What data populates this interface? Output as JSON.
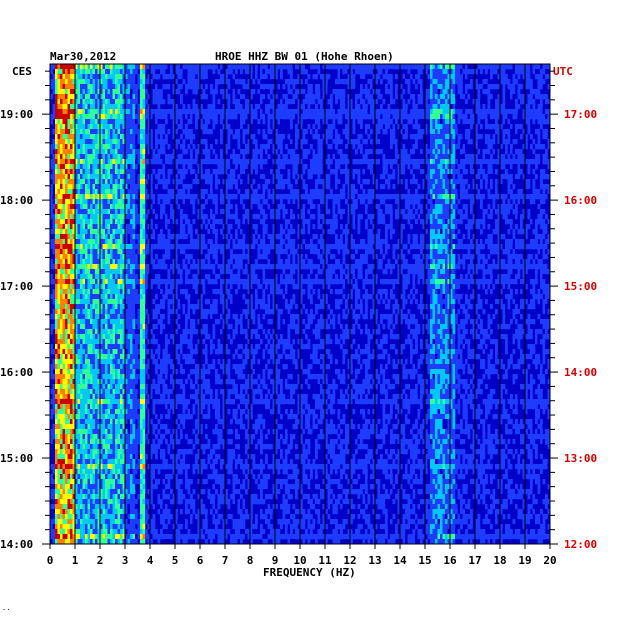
{
  "chart_data": {
    "type": "heatmap",
    "date": "Mar30,2012",
    "title": "HROE HHZ BW 01 (Hohe Rhoen)",
    "left_timezone": "CES",
    "right_timezone": "UTC",
    "xlabel": "FREQUENCY (HZ)",
    "xlim": [
      0,
      20
    ],
    "x_ticks": [
      "0",
      "1",
      "2",
      "3",
      "4",
      "5",
      "6",
      "7",
      "8",
      "9",
      "10",
      "11",
      "12",
      "13",
      "14",
      "15",
      "16",
      "17",
      "18",
      "19",
      "20"
    ],
    "left_ticks": [
      "14:00",
      "15:00",
      "16:00",
      "17:00",
      "18:00",
      "19:00"
    ],
    "right_ticks": [
      "12:00",
      "13:00",
      "14:00",
      "15:00",
      "16:00",
      "17:00"
    ],
    "left_time_range": [
      "14:00",
      "19:35"
    ],
    "colormap": [
      "#00007a",
      "#0000c8",
      "#1e3cff",
      "#00c8ff",
      "#32ff96",
      "#ffff00",
      "#ff8000",
      "#c80000"
    ],
    "background_color": "#0000c8",
    "right_label_color": "#d40000",
    "features": {
      "dominant_band_hz": [
        0.2,
        1.0
      ],
      "strong_band_hz": [
        1.0,
        3.0
      ],
      "narrow_line_hz": 3.7,
      "secondary_band_hz": [
        15.2,
        16.2
      ]
    }
  },
  "footer_mark": "··"
}
